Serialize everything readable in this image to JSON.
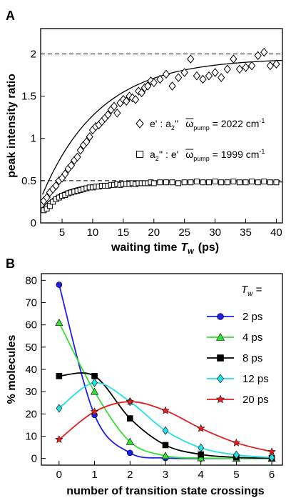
{
  "figure": {
    "panel_a_label": "A",
    "panel_b_label": "B"
  },
  "chart_data": [
    {
      "type": "scatter",
      "panel": "A",
      "xlabel": "waiting time",
      "xlabel_symbol": "T",
      "xlabel_sub": "w",
      "xlabel_unit": "(ps)",
      "ylabel": "peak intensity ratio",
      "xlim": [
        1.5,
        41
      ],
      "ylim": [
        0,
        2.3
      ],
      "xticks": [
        5,
        10,
        15,
        20,
        25,
        30,
        35,
        40
      ],
      "yticks": [
        0,
        0.5,
        1,
        1.5,
        2
      ],
      "ytick_labels": [
        "0",
        "0.5",
        "1",
        "1.5",
        "2"
      ],
      "reference_lines": [
        2.0,
        0.5
      ],
      "legend": {
        "diamond": {
          "pair": "e' : a",
          "pair_sub": "2",
          "pair_end": "''",
          "omega": "ω",
          "omega_sub": "pump",
          "eq": " = 2022 cm",
          "exp": "-1"
        },
        "square": {
          "pair": "a",
          "pair_sub": "2",
          "pair_end": "'' : e'",
          "omega": "ω",
          "omega_sub": "pump",
          "eq": " = 1999 cm",
          "exp": "-1"
        }
      },
      "series": [
        {
          "marker": "diamond",
          "x": [
            2.0,
            2.5,
            3.0,
            3.5,
            4.0,
            4.5,
            5.0,
            5.5,
            6.0,
            6.5,
            7.0,
            7.5,
            8.0,
            8.5,
            9.0,
            9.5,
            10.0,
            10.5,
            11.0,
            11.5,
            12.0,
            12.5,
            13.0,
            13.5,
            14.0,
            14.5,
            15.0,
            15.5,
            16.0,
            16.5,
            17.0,
            17.5,
            18.0,
            18.5,
            19.0,
            19.5,
            20.0,
            21.0,
            22.0,
            23.0,
            24.0,
            25.0,
            26.0,
            27.0,
            28.0,
            29.0,
            30.0,
            31.0,
            32.0,
            33.0,
            34.0,
            35.0,
            36.0,
            37.0,
            38.0,
            39.0,
            40.0
          ],
          "y": [
            0.26,
            0.3,
            0.36,
            0.4,
            0.44,
            0.5,
            0.53,
            0.58,
            0.64,
            0.68,
            0.74,
            0.78,
            0.86,
            0.92,
            0.96,
            1.02,
            1.1,
            1.14,
            1.16,
            1.2,
            1.24,
            1.28,
            1.34,
            1.38,
            1.3,
            1.42,
            1.46,
            1.44,
            1.5,
            1.48,
            1.46,
            1.56,
            1.54,
            1.6,
            1.62,
            1.68,
            1.66,
            1.7,
            1.76,
            1.62,
            1.72,
            1.78,
            1.94,
            1.74,
            1.7,
            1.74,
            1.78,
            1.72,
            1.82,
            1.94,
            1.82,
            1.84,
            1.86,
            1.98,
            2.02,
            1.86,
            1.88
          ],
          "fit_asymptote": 1.95,
          "fit_tau": 9.5
        },
        {
          "marker": "square",
          "x": [
            2.0,
            2.5,
            3.0,
            3.5,
            4.0,
            4.5,
            5.0,
            5.5,
            6.0,
            6.5,
            7.0,
            7.5,
            8.0,
            8.5,
            9.0,
            9.5,
            10.0,
            10.5,
            11.0,
            11.5,
            12.0,
            12.5,
            13.0,
            13.5,
            14.0,
            14.5,
            15.0,
            15.5,
            16.0,
            16.5,
            17.0,
            17.5,
            18.0,
            18.5,
            19.0,
            19.5,
            20.0,
            21.0,
            22.0,
            23.0,
            24.0,
            25.0,
            26.0,
            27.0,
            28.0,
            29.0,
            30.0,
            31.0,
            32.0,
            33.0,
            34.0,
            35.0,
            36.0,
            37.0,
            38.0,
            39.0,
            40.0
          ],
          "y": [
            0.15,
            0.17,
            0.2,
            0.25,
            0.28,
            0.3,
            0.32,
            0.33,
            0.35,
            0.36,
            0.37,
            0.38,
            0.39,
            0.4,
            0.41,
            0.42,
            0.42,
            0.43,
            0.43,
            0.44,
            0.44,
            0.44,
            0.45,
            0.45,
            0.46,
            0.45,
            0.46,
            0.46,
            0.46,
            0.47,
            0.46,
            0.47,
            0.47,
            0.47,
            0.47,
            0.48,
            0.47,
            0.48,
            0.48,
            0.48,
            0.47,
            0.48,
            0.48,
            0.49,
            0.48,
            0.48,
            0.49,
            0.48,
            0.48,
            0.49,
            0.48,
            0.48,
            0.49,
            0.48,
            0.49,
            0.48,
            0.48
          ],
          "fit_asymptote": 0.485,
          "fit_tau": 3.8
        }
      ]
    },
    {
      "type": "line",
      "panel": "B",
      "xlabel": "number of transition state crossings",
      "ylabel": "% molecules",
      "xlim": [
        -0.5,
        6.3
      ],
      "ylim": [
        -3,
        83
      ],
      "xticks": [
        0,
        1,
        2,
        3,
        4,
        5,
        6
      ],
      "yticks": [
        0,
        10,
        20,
        30,
        40,
        50,
        60,
        70,
        80
      ],
      "legend_title": "T",
      "legend_title_sub": "w",
      "legend_title_end": " =",
      "x": [
        0,
        1,
        2,
        3,
        4,
        5,
        6
      ],
      "series": [
        {
          "name": "2 ps",
          "color": "#1f1fe6",
          "marker": "circle",
          "values": [
            78,
            19.5,
            2.5,
            0.2,
            0,
            0,
            0
          ]
        },
        {
          "name": "4 ps",
          "color": "#33e033",
          "marker": "triangle",
          "values": [
            61,
            30,
            7.5,
            1.2,
            0.2,
            0,
            0
          ]
        },
        {
          "name": "8 ps",
          "color": "#000000",
          "marker": "square",
          "values": [
            37,
            37,
            18,
            6,
            1.8,
            0.5,
            0.1
          ]
        },
        {
          "name": "12 ps",
          "color": "#22e0e6",
          "marker": "diamond",
          "values": [
            22.5,
            34,
            25.5,
            12.5,
            4.8,
            1.6,
            0.4
          ]
        },
        {
          "name": "20 ps",
          "color": "#e02020",
          "marker": "star",
          "values": [
            8.5,
            21,
            25.5,
            21.5,
            13.5,
            7,
            3
          ]
        }
      ]
    }
  ]
}
